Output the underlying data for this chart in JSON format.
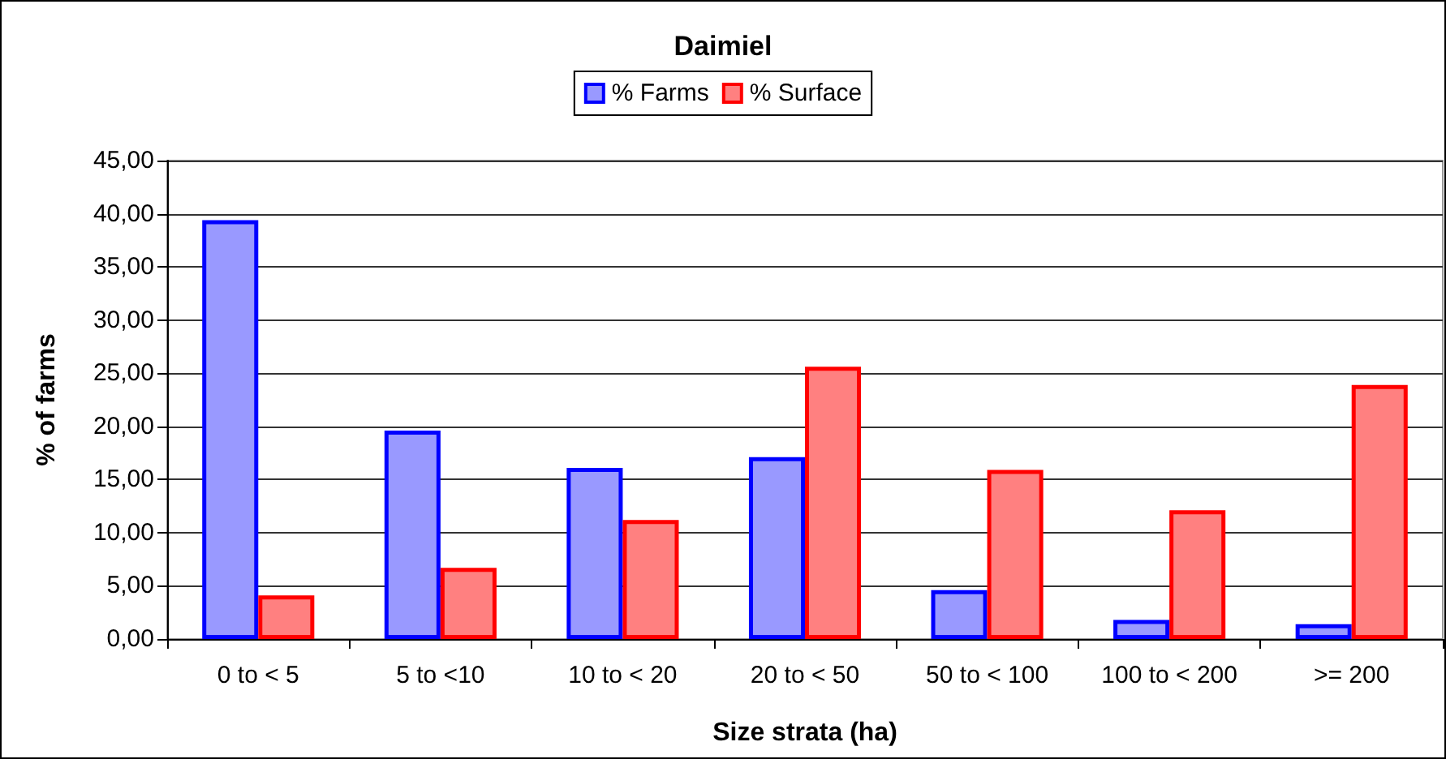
{
  "chart_data": {
    "type": "bar",
    "title": "Daimiel",
    "xlabel": "Size strata (ha)",
    "ylabel": "% of farms",
    "categories": [
      "0 to < 5",
      "5 to <10",
      "10 to < 20",
      "20 to < 50",
      "50 to < 100",
      "100 to < 200",
      ">= 200"
    ],
    "series": [
      {
        "name": "% Farms",
        "color": "#9999ff",
        "values": [
          39.4,
          19.6,
          16.1,
          17.1,
          4.6,
          1.8,
          1.4
        ]
      },
      {
        "name": "% Surface",
        "color": "#ff8080",
        "values": [
          4.1,
          6.7,
          11.2,
          25.6,
          15.9,
          12.1,
          23.9
        ]
      }
    ],
    "ylim": [
      0,
      45
    ],
    "yticks": [
      {
        "value": 0,
        "label": "0,00"
      },
      {
        "value": 5,
        "label": "5,00"
      },
      {
        "value": 10,
        "label": "10,00"
      },
      {
        "value": 15,
        "label": "15,00"
      },
      {
        "value": 20,
        "label": "20,00"
      },
      {
        "value": 25,
        "label": "25,00"
      },
      {
        "value": 30,
        "label": "30,00"
      },
      {
        "value": 35,
        "label": "35,00"
      },
      {
        "value": 40,
        "label": "40,00"
      },
      {
        "value": 45,
        "label": "45,00"
      }
    ],
    "grid": "y",
    "legend": "top"
  }
}
